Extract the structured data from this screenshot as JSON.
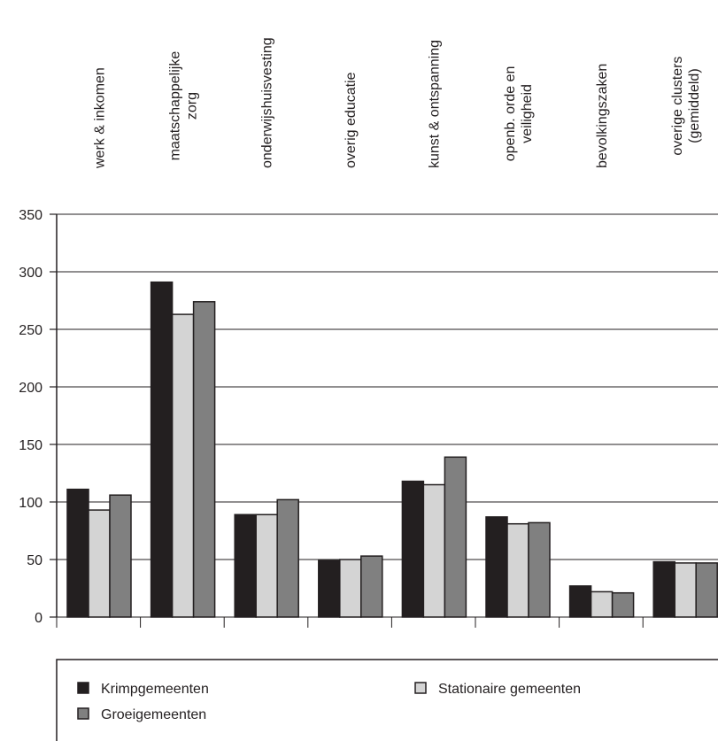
{
  "chart_data": {
    "type": "bar",
    "categories": [
      "werk & inkomen",
      "maatschappelijke\nzorg",
      "onderwijshuisvesting",
      "overig educatie",
      "kunst & ontspanning",
      "openb. orde en\nveiligheid",
      "bevolkingszaken",
      "overige clusters\n(gemiddeld)"
    ],
    "series": [
      {
        "name": "Krimpgemeenten",
        "color": "#231f20",
        "values": [
          111,
          291,
          89,
          49,
          118,
          87,
          27,
          48
        ]
      },
      {
        "name": "Stationaire gemeenten",
        "color": "#d4d4d4",
        "values": [
          93,
          263,
          89,
          50,
          115,
          81,
          22,
          47
        ]
      },
      {
        "name": "Groeigemeenten",
        "color": "#808080",
        "values": [
          106,
          274,
          102,
          53,
          139,
          82,
          21,
          47
        ]
      }
    ],
    "ylim": [
      0,
      350
    ],
    "yticks": [
      0,
      50,
      100,
      150,
      200,
      250,
      300,
      350
    ],
    "grid": true
  }
}
